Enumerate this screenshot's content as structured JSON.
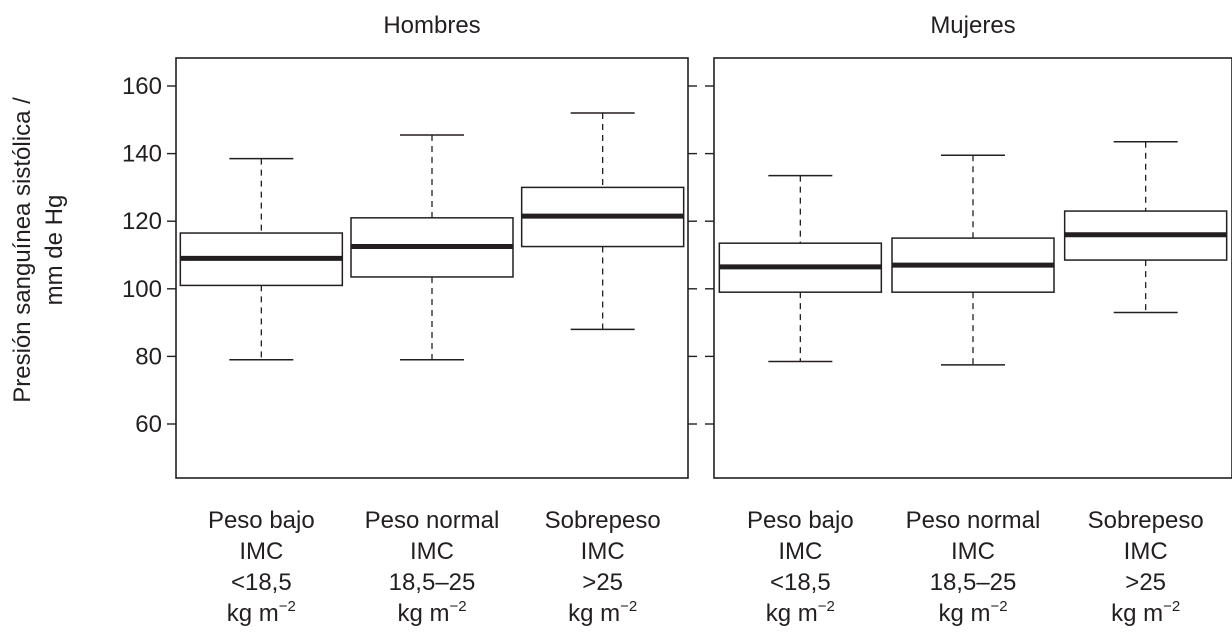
{
  "chart_data": {
    "type": "boxplot",
    "ylabel_lines": [
      "Presión sanguínea sistólica /",
      "mm de Hg"
    ],
    "yticks": [
      60,
      80,
      100,
      120,
      140,
      160
    ],
    "ylim": [
      45,
      165
    ],
    "categories": [
      {
        "lines": [
          "Peso bajo",
          "IMC",
          "<18,5",
          "kg m"
        ],
        "sup": "−2"
      },
      {
        "lines": [
          "Peso normal",
          "IMC",
          "18,5–25",
          "kg m"
        ],
        "sup": "−2"
      },
      {
        "lines": [
          "Sobrepeso",
          "IMC",
          ">25",
          "kg m"
        ],
        "sup": "−2"
      }
    ],
    "panels": [
      {
        "title": "Hombres",
        "boxes": [
          {
            "whisker_low": 79,
            "q1": 101,
            "median": 109,
            "q3": 116.5,
            "whisker_high": 138.5
          },
          {
            "whisker_low": 79,
            "q1": 103.5,
            "median": 112.5,
            "q3": 121,
            "whisker_high": 145.5
          },
          {
            "whisker_low": 88,
            "q1": 112.5,
            "median": 121.5,
            "q3": 130,
            "whisker_high": 152
          }
        ]
      },
      {
        "title": "Mujeres",
        "boxes": [
          {
            "whisker_low": 78.5,
            "q1": 99,
            "median": 106.5,
            "q3": 113.5,
            "whisker_high": 133.5
          },
          {
            "whisker_low": 77.5,
            "q1": 99,
            "median": 107,
            "q3": 115,
            "whisker_high": 139.5
          },
          {
            "whisker_low": 93,
            "q1": 108.5,
            "median": 116,
            "q3": 123,
            "whisker_high": 143.5
          }
        ]
      }
    ]
  }
}
